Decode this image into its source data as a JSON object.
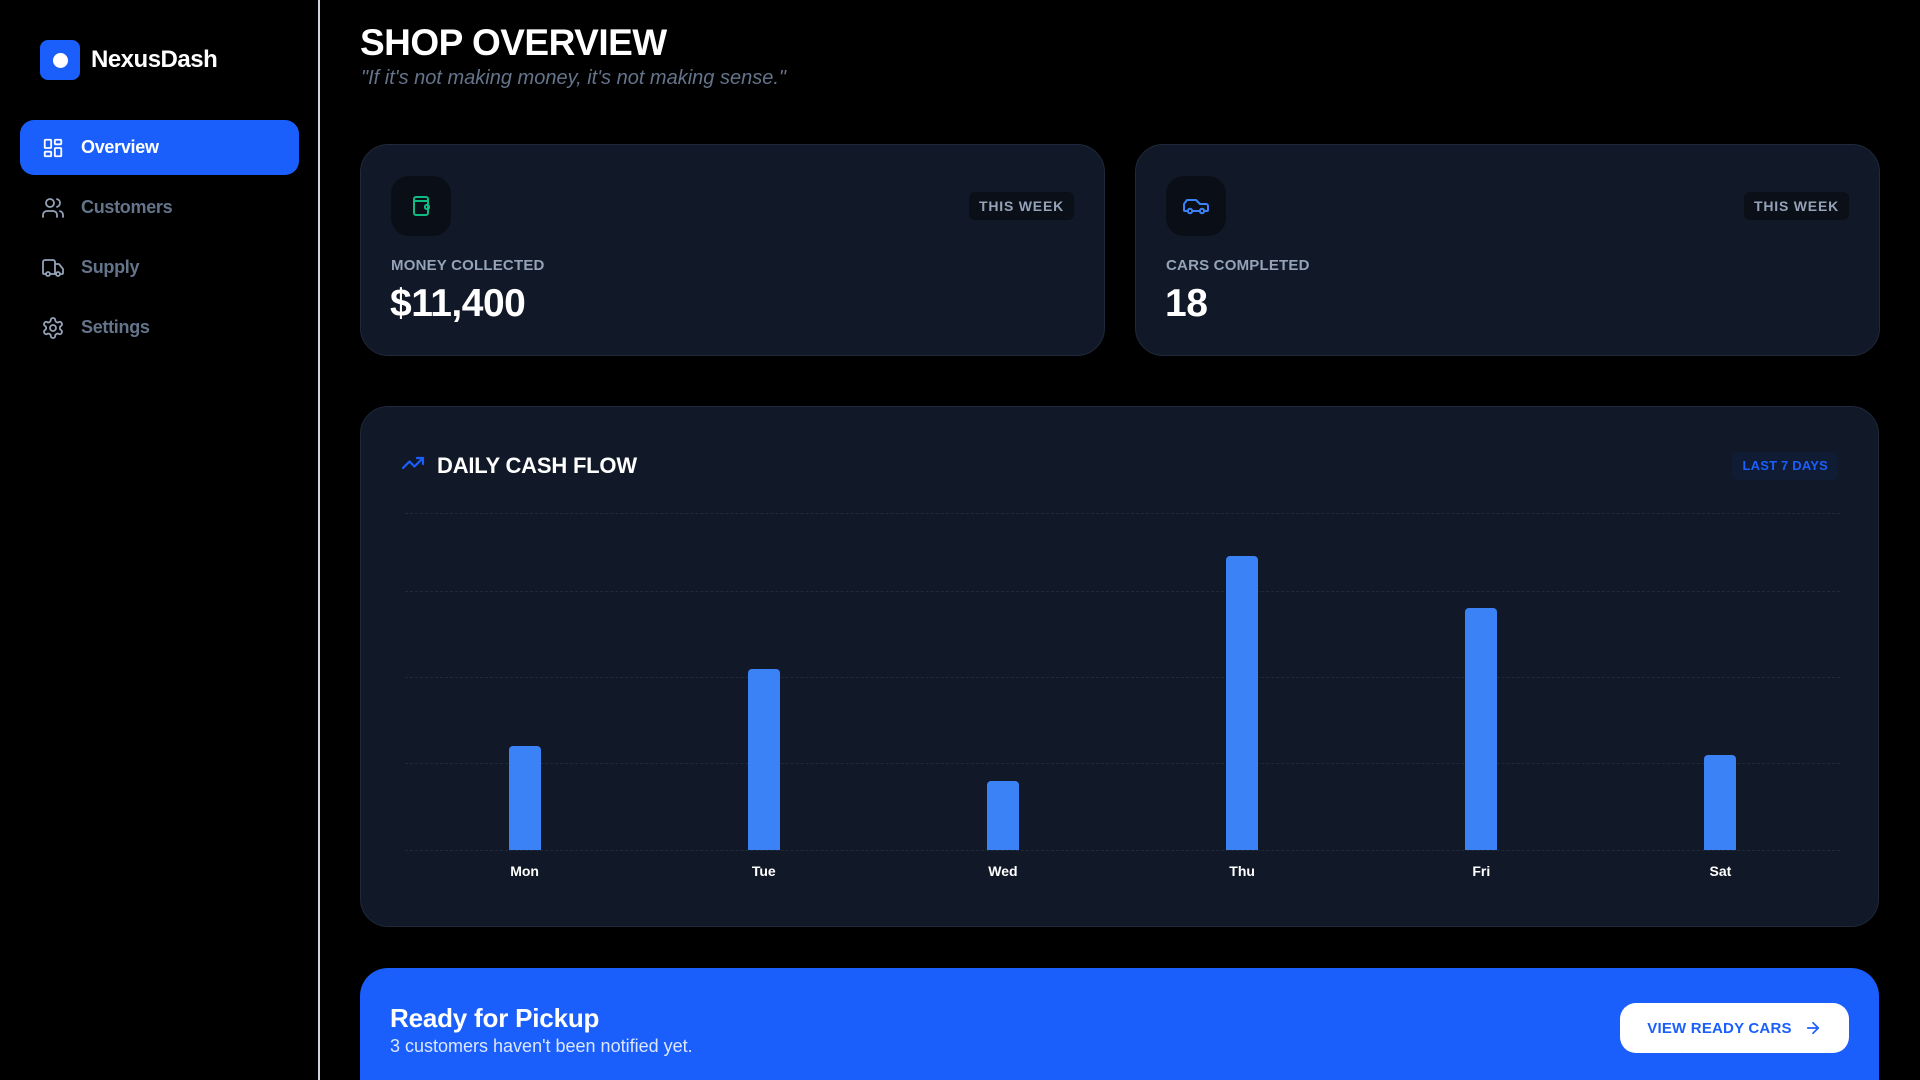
{
  "app": {
    "name": "NexusDash"
  },
  "sidebar": {
    "items": [
      {
        "label": "Overview",
        "icon": "grid-icon",
        "active": true
      },
      {
        "label": "Customers",
        "icon": "users-icon",
        "active": false
      },
      {
        "label": "Supply",
        "icon": "truck-icon",
        "active": false
      },
      {
        "label": "Settings",
        "icon": "gear-icon",
        "active": false
      }
    ]
  },
  "header": {
    "title": "SHOP OVERVIEW",
    "subtitle": "\"If it's not making money, it's not making sense.\""
  },
  "stats": [
    {
      "icon": "wallet-icon",
      "icon_color": "#10b981",
      "badge": "THIS WEEK",
      "label": "MONEY COLLECTED",
      "value": "$11,400"
    },
    {
      "icon": "car-icon",
      "icon_color": "#3b82f6",
      "badge": "THIS WEEK",
      "label": "CARS COMPLETED",
      "value": "18"
    }
  ],
  "chart": {
    "icon": "trending-up-icon",
    "title": "DAILY CASH FLOW",
    "badge": "LAST 7 DAYS"
  },
  "chart_data": {
    "type": "bar",
    "title": "DAILY CASH FLOW",
    "subtitle": "LAST 7 DAYS",
    "categories": [
      "Mon",
      "Tue",
      "Wed",
      "Thu",
      "Fri",
      "Sat"
    ],
    "values": [
      1200,
      2100,
      800,
      3400,
      2800,
      1100
    ],
    "xlabel": "",
    "ylabel": "",
    "ylim": [
      0,
      3900
    ],
    "grid": true,
    "grid_lines": 5,
    "bar_color": "#3b82f6",
    "legend": null
  },
  "banner": {
    "title": "Ready for Pickup",
    "text": "3 customers haven't been notified yet.",
    "button_label": "VIEW READY CARS"
  },
  "colors": {
    "accent": "#1a5ffc",
    "card_bg": "#111827",
    "bar": "#3b82f6",
    "money_icon": "#10b981",
    "muted_text": "#94a3b8"
  }
}
